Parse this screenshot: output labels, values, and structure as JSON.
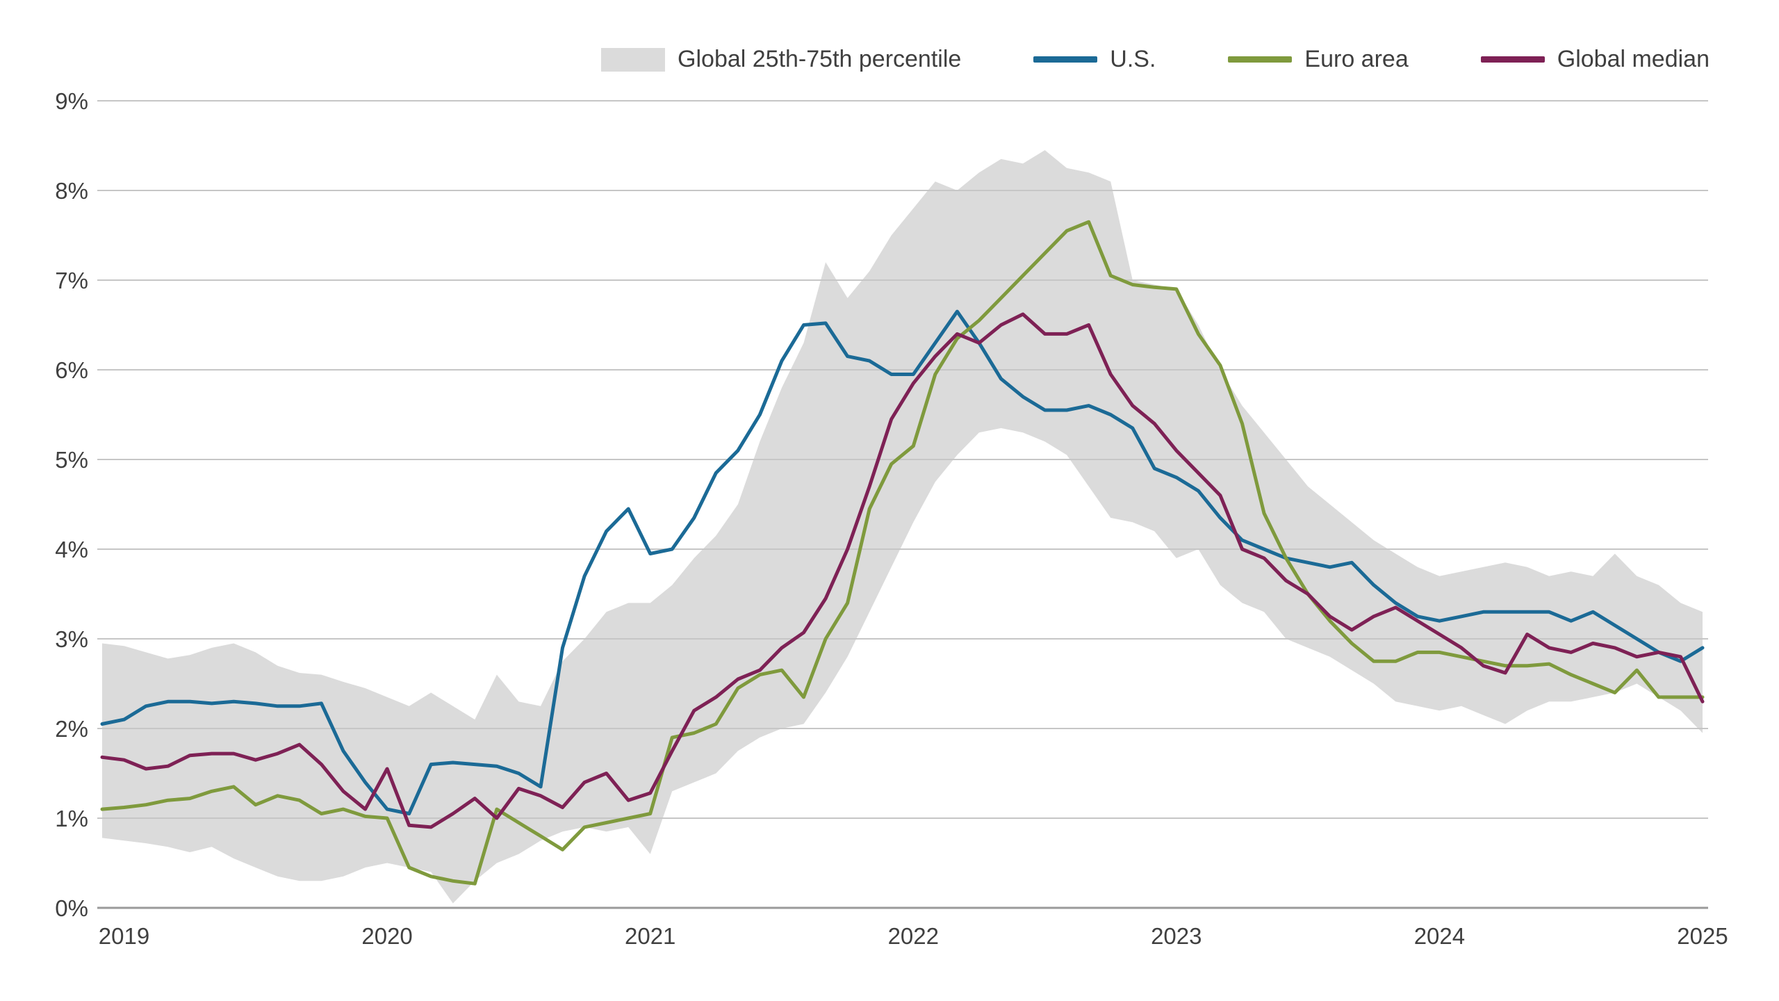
{
  "chart_data": {
    "type": "line",
    "frequency": "monthly",
    "x_start": "2018-12",
    "x_tick_labels": [
      "2019",
      "2020",
      "2021",
      "2022",
      "2023",
      "2024",
      "2025"
    ],
    "x_tick_month_indices": [
      1,
      13,
      25,
      37,
      49,
      61,
      73
    ],
    "ylim": [
      0,
      9
    ],
    "y_tick_labels": [
      "0%",
      "1%",
      "2%",
      "3%",
      "4%",
      "5%",
      "6%",
      "7%",
      "8%",
      "9%"
    ],
    "grid": "horizontal",
    "legend_position": "top-right",
    "colors": {
      "grid": "#c6c6c6",
      "axis_baseline": "#9a9a9a",
      "tick_text": "#404040",
      "background": "#ffffff"
    },
    "band": {
      "key": "global-25-75-percentile",
      "label": "Global 25th-75th percentile",
      "color": "#dbdbdb",
      "upper": [
        2.95,
        2.92,
        2.85,
        2.78,
        2.82,
        2.9,
        2.95,
        2.85,
        2.7,
        2.62,
        2.6,
        2.52,
        2.45,
        2.35,
        2.25,
        2.4,
        2.25,
        2.1,
        2.6,
        2.3,
        2.25,
        2.75,
        3.0,
        3.3,
        3.4,
        3.4,
        3.6,
        3.9,
        4.15,
        4.5,
        5.2,
        5.8,
        6.3,
        7.2,
        6.8,
        7.1,
        7.5,
        7.8,
        8.1,
        8.0,
        8.2,
        8.35,
        8.3,
        8.45,
        8.25,
        8.2,
        8.1,
        7.0,
        6.95,
        6.9,
        6.5,
        6.0,
        5.6,
        5.3,
        5.0,
        4.7,
        4.5,
        4.3,
        4.1,
        3.95,
        3.8,
        3.7,
        3.75,
        3.8,
        3.85,
        3.8,
        3.7,
        3.75,
        3.7,
        3.95,
        3.7,
        3.6,
        3.4,
        3.3
      ],
      "lower": [
        0.78,
        0.75,
        0.72,
        0.68,
        0.62,
        0.68,
        0.55,
        0.45,
        0.35,
        0.3,
        0.3,
        0.35,
        0.45,
        0.5,
        0.45,
        0.4,
        0.05,
        0.3,
        0.5,
        0.6,
        0.75,
        0.85,
        0.9,
        0.85,
        0.9,
        0.6,
        1.3,
        1.4,
        1.5,
        1.75,
        1.9,
        2.0,
        2.05,
        2.4,
        2.8,
        3.3,
        3.8,
        4.3,
        4.75,
        5.05,
        5.3,
        5.35,
        5.3,
        5.2,
        5.05,
        4.7,
        4.35,
        4.3,
        4.2,
        3.9,
        4.0,
        3.6,
        3.4,
        3.3,
        3.0,
        2.9,
        2.8,
        2.65,
        2.5,
        2.3,
        2.25,
        2.2,
        2.25,
        2.15,
        2.05,
        2.2,
        2.3,
        2.3,
        2.35,
        2.4,
        2.5,
        2.35,
        2.2,
        1.95
      ]
    },
    "series": [
      {
        "key": "us",
        "name": "U.S.",
        "color": "#1b6a96",
        "values": [
          2.05,
          2.1,
          2.25,
          2.3,
          2.3,
          2.28,
          2.3,
          2.28,
          2.25,
          2.25,
          2.28,
          1.75,
          1.4,
          1.1,
          1.05,
          1.6,
          1.62,
          1.6,
          1.58,
          1.5,
          1.35,
          2.9,
          3.7,
          4.2,
          4.45,
          3.95,
          4.0,
          4.35,
          4.85,
          5.1,
          5.5,
          6.1,
          6.5,
          6.52,
          6.15,
          6.1,
          5.95,
          5.95,
          6.3,
          6.65,
          6.3,
          5.9,
          5.7,
          5.55,
          5.55,
          5.6,
          5.5,
          5.35,
          4.9,
          4.8,
          4.65,
          4.35,
          4.1,
          4.0,
          3.9,
          3.85,
          3.8,
          3.85,
          3.6,
          3.4,
          3.25,
          3.2,
          3.25,
          3.3,
          3.3,
          3.3,
          3.3,
          3.2,
          3.3,
          3.15,
          3.0,
          2.85,
          2.75,
          2.9
        ]
      },
      {
        "key": "euro-area",
        "name": "Euro area",
        "color": "#7f9a3d",
        "values": [
          1.1,
          1.12,
          1.15,
          1.2,
          1.22,
          1.3,
          1.35,
          1.15,
          1.25,
          1.2,
          1.05,
          1.1,
          1.02,
          1.0,
          0.45,
          0.35,
          0.3,
          0.27,
          1.1,
          0.95,
          0.8,
          0.65,
          0.9,
          0.95,
          1.0,
          1.05,
          1.9,
          1.95,
          2.05,
          2.45,
          2.6,
          2.65,
          2.35,
          3.0,
          3.4,
          4.45,
          4.95,
          5.15,
          5.95,
          6.35,
          6.55,
          6.8,
          7.05,
          7.3,
          7.55,
          7.65,
          7.05,
          6.95,
          6.92,
          6.9,
          6.4,
          6.05,
          5.4,
          4.4,
          3.9,
          3.5,
          3.2,
          2.95,
          2.75,
          2.75,
          2.85,
          2.85,
          2.8,
          2.75,
          2.7,
          2.7,
          2.72,
          2.6,
          2.5,
          2.4,
          2.65,
          2.35,
          2.35,
          2.35
        ]
      },
      {
        "key": "global-median",
        "name": "Global median",
        "color": "#7e2155",
        "values": [
          1.68,
          1.65,
          1.55,
          1.58,
          1.7,
          1.72,
          1.72,
          1.65,
          1.72,
          1.82,
          1.6,
          1.3,
          1.1,
          1.55,
          0.92,
          0.9,
          1.05,
          1.22,
          1.0,
          1.33,
          1.25,
          1.12,
          1.4,
          1.5,
          1.2,
          1.28,
          1.75,
          2.2,
          2.35,
          2.55,
          2.65,
          2.9,
          3.07,
          3.45,
          4.0,
          4.7,
          5.45,
          5.85,
          6.15,
          6.4,
          6.3,
          6.5,
          6.62,
          6.4,
          6.4,
          6.5,
          5.95,
          5.6,
          5.4,
          5.1,
          4.85,
          4.6,
          4.0,
          3.9,
          3.65,
          3.5,
          3.25,
          3.1,
          3.25,
          3.35,
          3.2,
          3.05,
          2.9,
          2.7,
          2.62,
          3.05,
          2.9,
          2.85,
          2.95,
          2.9,
          2.8,
          2.85,
          2.8,
          2.3
        ]
      }
    ]
  }
}
